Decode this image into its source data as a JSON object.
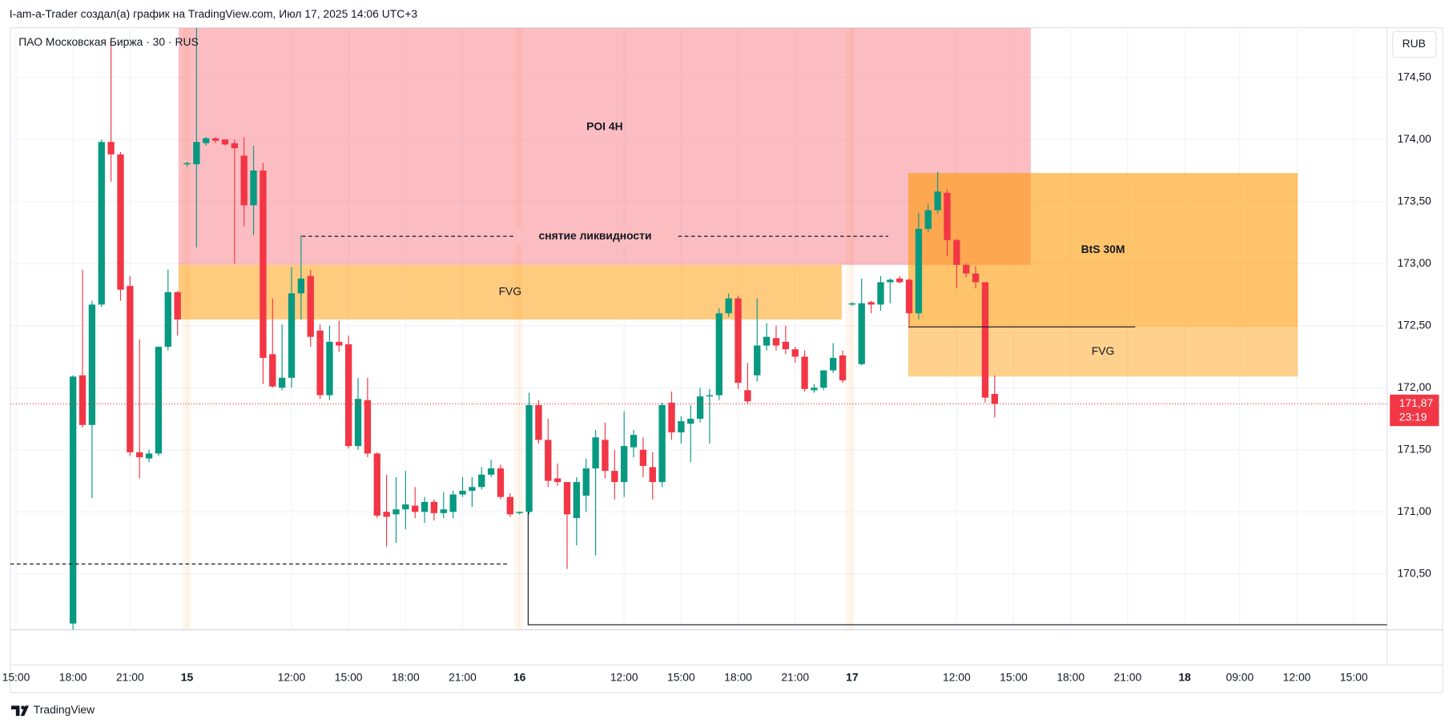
{
  "header": {
    "credit": "I-am-a-Trader создал(а) график на TradingView.com, Июл 17, 2025 14:06 UTC+3"
  },
  "footer": {
    "brand": "TradingView"
  },
  "chart_data": {
    "type": "candlestick",
    "symbol": "ПАО Московская Биржа · 30 · RUS",
    "currency": "RUB",
    "up_color": "#089981",
    "down_color": "#f23645",
    "grid": true,
    "xlim": [
      16.4,
      161.3
    ],
    "ylim": [
      170.05,
      174.9
    ],
    "xticks": [
      {
        "value": 17,
        "label": "15:00"
      },
      {
        "value": 23,
        "label": "18:00"
      },
      {
        "value": 29,
        "label": "21:00"
      },
      {
        "value": 35,
        "label": "15"
      },
      {
        "value": 46,
        "label": "12:00"
      },
      {
        "value": 52,
        "label": "15:00"
      },
      {
        "value": 58,
        "label": "18:00"
      },
      {
        "value": 64,
        "label": "21:00"
      },
      {
        "value": 70,
        "label": "16"
      },
      {
        "value": 81,
        "label": "12:00"
      },
      {
        "value": 87,
        "label": "15:00"
      },
      {
        "value": 93,
        "label": "18:00"
      },
      {
        "value": 99,
        "label": "21:00"
      },
      {
        "value": 105,
        "label": "17"
      },
      {
        "value": 116,
        "label": "12:00"
      },
      {
        "value": 122,
        "label": "15:00"
      },
      {
        "value": 128,
        "label": "18:00"
      },
      {
        "value": 134,
        "label": "21:00"
      },
      {
        "value": 140,
        "label": "18"
      },
      {
        "value": 145.8,
        "label": "09:00"
      },
      {
        "value": 151.8,
        "label": "12:00"
      },
      {
        "value": 157.8,
        "label": "15:00"
      }
    ],
    "yticks": [
      {
        "value": 170.5,
        "label": "170,50"
      },
      {
        "value": 171,
        "label": "171,00"
      },
      {
        "value": 171.5,
        "label": "171,50"
      },
      {
        "value": 172,
        "label": "172,00"
      },
      {
        "value": 172.5,
        "label": "172,50"
      },
      {
        "value": 173,
        "label": "173,00"
      },
      {
        "value": 173.5,
        "label": "173,50"
      },
      {
        "value": 174,
        "label": "174,00"
      },
      {
        "value": 174.5,
        "label": "174,50"
      }
    ],
    "x": [
      23,
      24,
      25,
      26,
      27,
      28,
      29,
      30,
      31,
      32,
      33,
      34,
      35,
      36,
      37,
      38,
      39,
      40,
      41,
      42,
      43,
      44,
      45,
      46,
      47,
      48,
      49,
      50,
      51,
      52,
      53,
      54,
      55,
      56,
      57,
      58,
      59,
      60,
      61,
      62,
      63,
      64,
      65,
      66,
      67,
      68,
      69,
      70,
      71,
      72,
      73,
      74,
      75,
      76,
      77,
      78,
      79,
      80,
      81,
      82,
      83,
      84,
      85,
      86,
      87,
      88,
      89,
      90,
      91,
      92,
      93,
      94,
      95,
      96,
      97,
      98,
      99,
      100,
      101,
      102,
      103,
      104,
      105,
      106,
      107,
      108,
      109,
      110,
      111,
      112,
      113,
      114,
      115,
      116,
      117,
      118,
      119,
      120
    ],
    "open": [
      170.1,
      172.1,
      171.7,
      172.67,
      173.98,
      173.88,
      172.82,
      171.48,
      171.43,
      171.47,
      172.33,
      172.77,
      173.8,
      173.8,
      173.97,
      174.01,
      174.0,
      173.97,
      173.87,
      173.47,
      173.75,
      172.27,
      172.0,
      172.08,
      172.76,
      172.9,
      172.46,
      171.94,
      172.37,
      172.35,
      171.53,
      171.9,
      171.47,
      171.0,
      170.98,
      171.02,
      171.05,
      171.0,
      171.08,
      170.99,
      171.0,
      171.14,
      171.17,
      171.2,
      171.3,
      171.35,
      171.12,
      170.99,
      171.0,
      171.86,
      171.58,
      171.27,
      171.24,
      170.95,
      171.13,
      171.35,
      171.58,
      171.33,
      171.24,
      171.52,
      171.5,
      171.36,
      171.24,
      171.88,
      171.64,
      171.71,
      171.75,
      171.93,
      171.94,
      172.6,
      172.72,
      171.98,
      172.1,
      172.34,
      172.4,
      172.37,
      172.31,
      172.25,
      171.98,
      172.0,
      172.14,
      172.26,
      172.67,
      172.19,
      172.69,
      172.67,
      172.85,
      172.88,
      172.87,
      172.6,
      173.28,
      173.43,
      173.57,
      173.19,
      172.99,
      172.92,
      172.85,
      171.95
    ],
    "high": [
      172.1,
      172.95,
      172.7,
      174.0,
      174.78,
      173.9,
      172.9,
      172.39,
      171.5,
      172.33,
      172.95,
      172.78,
      173.82,
      174.9,
      174.02,
      174.02,
      174.0,
      174.0,
      174.02,
      173.95,
      173.81,
      172.72,
      172.51,
      172.97,
      173.23,
      172.95,
      172.51,
      172.5,
      172.54,
      172.42,
      172.08,
      172.08,
      171.48,
      171.3,
      171.28,
      171.33,
      171.2,
      171.12,
      171.1,
      171.16,
      171.17,
      171.28,
      171.28,
      171.36,
      171.42,
      171.38,
      171.15,
      171.0,
      171.96,
      171.9,
      171.75,
      171.39,
      171.24,
      171.28,
      171.43,
      171.66,
      171.72,
      171.5,
      171.81,
      171.66,
      171.6,
      171.48,
      171.88,
      171.97,
      171.77,
      171.86,
      172.0,
      171.99,
      172.64,
      172.76,
      172.74,
      172.2,
      172.72,
      172.52,
      172.5,
      172.5,
      172.33,
      172.3,
      172.03,
      172.14,
      172.36,
      172.3,
      172.69,
      172.88,
      172.7,
      172.9,
      172.88,
      172.9,
      172.88,
      173.41,
      173.48,
      173.74,
      173.6,
      173.2,
      173.0,
      172.98,
      172.85,
      172.1
    ],
    "low": [
      169.9,
      171.68,
      171.11,
      172.65,
      173.66,
      172.7,
      171.45,
      171.27,
      171.4,
      171.45,
      172.3,
      172.42,
      173.78,
      173.13,
      173.95,
      173.97,
      173.95,
      173.0,
      173.3,
      173.23,
      172.03,
      172.0,
      171.98,
      172.0,
      172.55,
      172.33,
      171.91,
      171.9,
      172.29,
      171.51,
      171.5,
      171.44,
      170.95,
      170.72,
      170.75,
      170.86,
      170.95,
      170.91,
      170.93,
      170.95,
      170.95,
      171.12,
      171.04,
      171.18,
      171.28,
      171.1,
      170.96,
      170.98,
      170.98,
      171.55,
      171.2,
      171.21,
      170.54,
      170.73,
      171.0,
      170.65,
      171.27,
      171.1,
      171.12,
      171.44,
      171.28,
      171.1,
      171.2,
      171.58,
      171.55,
      171.4,
      171.72,
      171.55,
      171.9,
      172.57,
      171.99,
      171.87,
      172.05,
      172.3,
      172.3,
      172.27,
      172.2,
      171.97,
      171.96,
      171.98,
      172.12,
      172.04,
      172.66,
      172.18,
      172.6,
      172.62,
      172.68,
      172.84,
      172.5,
      172.55,
      173.25,
      173.4,
      173.06,
      172.8,
      172.89,
      172.8,
      171.88,
      171.76
    ],
    "close": [
      172.09,
      171.7,
      172.67,
      173.98,
      173.88,
      172.79,
      171.48,
      171.44,
      171.47,
      172.33,
      172.77,
      172.55,
      173.81,
      173.98,
      174.01,
      173.99,
      173.96,
      173.93,
      173.47,
      173.75,
      172.24,
      172.01,
      172.08,
      172.76,
      172.88,
      172.41,
      171.94,
      172.37,
      172.34,
      171.53,
      171.91,
      171.47,
      170.97,
      170.96,
      171.02,
      171.06,
      171.0,
      171.08,
      170.99,
      171.02,
      171.14,
      171.17,
      171.2,
      171.3,
      171.35,
      171.12,
      170.98,
      171.0,
      171.86,
      171.58,
      171.25,
      171.24,
      170.98,
      171.24,
      171.35,
      171.6,
      171.33,
      171.24,
      171.53,
      171.62,
      171.37,
      171.24,
      171.86,
      171.64,
      171.73,
      171.75,
      171.93,
      171.94,
      172.6,
      172.72,
      172.04,
      171.89,
      172.34,
      172.41,
      172.34,
      172.31,
      172.25,
      171.99,
      172.0,
      172.14,
      172.24,
      172.06,
      172.68,
      172.68,
      172.67,
      172.85,
      172.87,
      172.85,
      172.6,
      173.28,
      173.43,
      173.58,
      173.19,
      172.99,
      172.92,
      172.85,
      171.92,
      171.87
    ],
    "last_price": {
      "value": 171.87,
      "label": "171,87"
    },
    "countdown": "23:19",
    "zones": [
      {
        "label": "POI 4H",
        "x": [
          34.1,
          123.8
        ],
        "y": [
          172.99,
          174.9
        ],
        "color": "rgba(247,82,95,0.38)"
      },
      {
        "label": "FVG",
        "x": [
          34.1,
          103.9
        ],
        "y": [
          172.55,
          172.99
        ],
        "color": "rgba(255,152,0,0.5)"
      },
      {
        "label": "BtS 30M",
        "x": [
          110.9,
          151.9
        ],
        "y": [
          172.49,
          173.73
        ],
        "color": "rgba(255,152,0,0.58)"
      },
      {
        "label": "FVG",
        "x": [
          110.9,
          151.9
        ],
        "y": [
          172.09,
          172.49
        ],
        "color": "rgba(255,152,0,0.45)"
      }
    ],
    "lines": [
      {
        "label": "снятие ликвидности",
        "style": "dashed",
        "x": [
          47.1,
          108.8
        ],
        "y": [
          173.22,
          173.22
        ]
      },
      {
        "style": "dashed",
        "x": [
          16.4,
          68.8
        ],
        "y": [
          170.58,
          170.58
        ]
      },
      {
        "style": "solid",
        "x": [
          70.9,
          70.9,
          161.3
        ],
        "y": [
          171.0,
          170.09,
          170.09
        ]
      },
      {
        "style": "solid",
        "x": [
          110.9,
          134.8
        ],
        "y": [
          172.49,
          172.49
        ]
      }
    ]
  }
}
